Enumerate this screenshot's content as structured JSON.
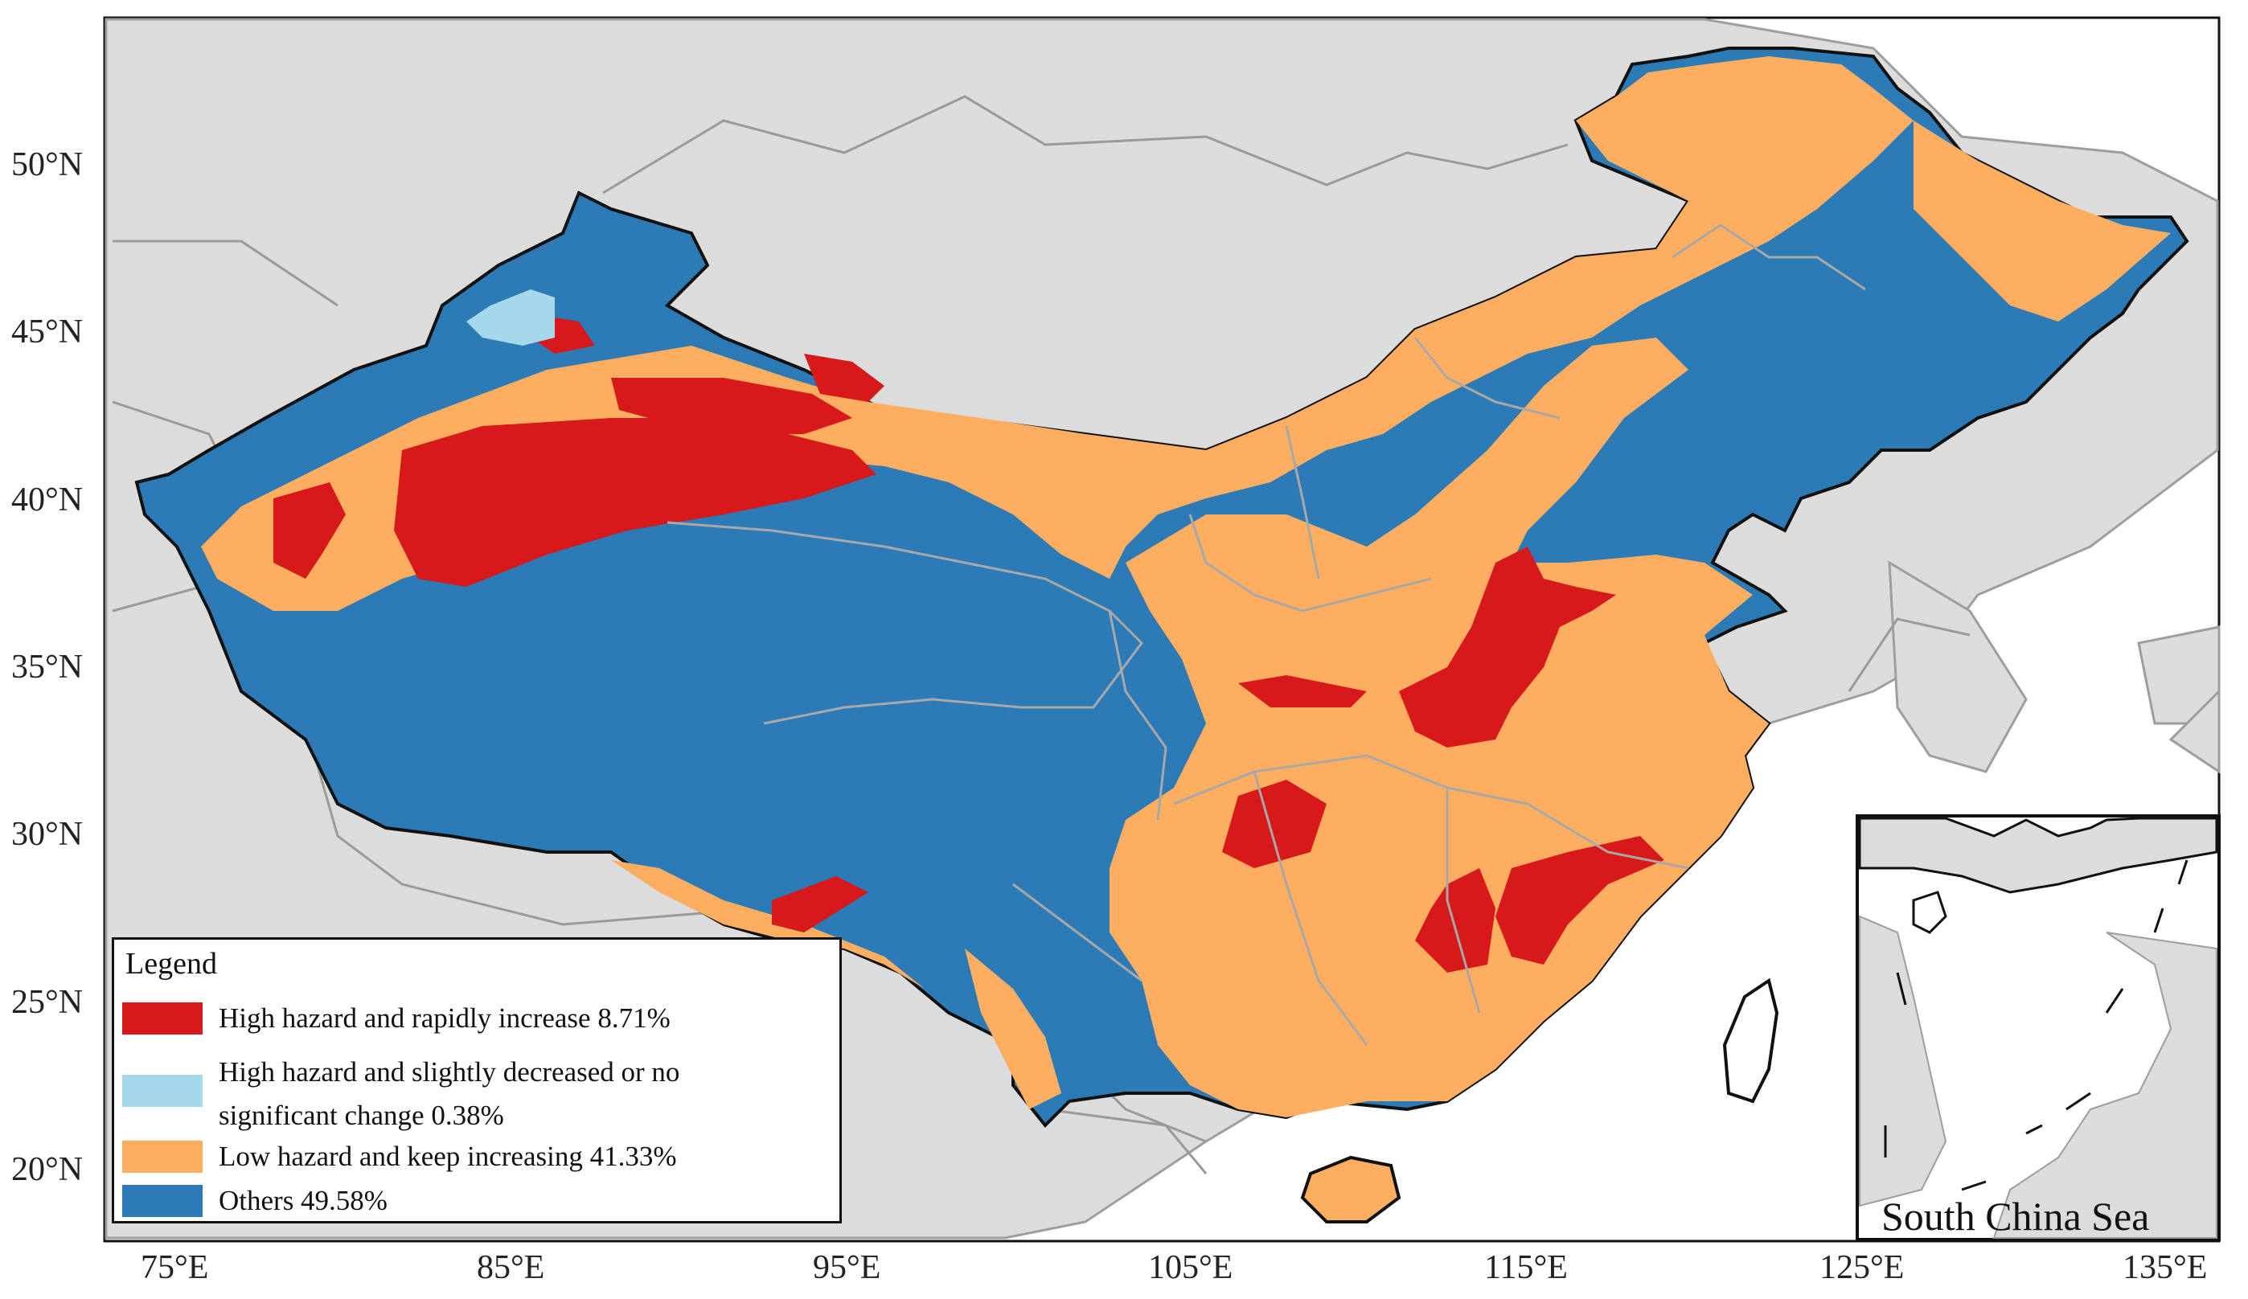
{
  "colors": {
    "background": "#ffffff",
    "land_other": "#dcdcdc",
    "high_rapid": "#d7191c",
    "high_slight": "#a6d8ec",
    "low_increasing": "#fdae61",
    "others": "#2c7bb6",
    "boundary": "#9e9e9e"
  },
  "axes": {
    "longitude_ticks": [
      "75°E",
      "85°E",
      "95°E",
      "105°E",
      "115°E",
      "125°E",
      "135°E"
    ],
    "latitude_ticks": [
      "50°N",
      "45°N",
      "40°N",
      "35°N",
      "30°N",
      "25°N",
      "20°N"
    ]
  },
  "legend": {
    "title": "Legend",
    "items": [
      {
        "label": "High hazard and rapidly increase 8.71%",
        "color": "#d7191c"
      },
      {
        "label": "High hazard and slightly decreased or no significant change 0.38%",
        "color": "#a6d8ec"
      },
      {
        "label": "Low hazard and keep increasing 41.33%",
        "color": "#fdae61"
      },
      {
        "label": "Others 49.58%",
        "color": "#2c7bb6"
      }
    ]
  },
  "inset": {
    "caption": "South China Sea"
  }
}
